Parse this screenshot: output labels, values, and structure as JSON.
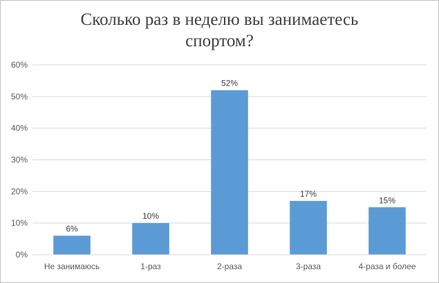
{
  "chart_data": {
    "type": "bar",
    "title_lines": [
      "Сколько раз в неделю вы занимаетесь",
      "спортом?"
    ],
    "categories": [
      "Не занимаюсь",
      "1-раз",
      "2-раза",
      "3-раза",
      "4-раза и более"
    ],
    "values": [
      6,
      10,
      52,
      17,
      15
    ],
    "data_labels": [
      "6%",
      "10%",
      "52%",
      "17%",
      "15%"
    ],
    "y_ticks": [
      "0%",
      "10%",
      "20%",
      "30%",
      "40%",
      "50%",
      "60%"
    ],
    "ylim": [
      0,
      60
    ],
    "grid": true,
    "legend": "none",
    "bar_color": "#5b9bd5",
    "grid_color": "#d9d9d9"
  }
}
